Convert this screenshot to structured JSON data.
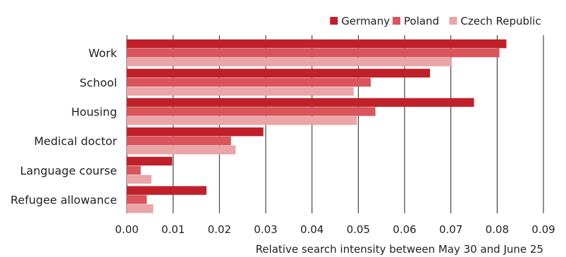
{
  "chart_data": {
    "type": "bar",
    "orientation": "horizontal",
    "categories": [
      "Work",
      "School",
      "Housing",
      "Medical doctor",
      "Language course",
      "Refugee allowance"
    ],
    "series": [
      {
        "name": "Germany",
        "color": "#c0202a",
        "values": [
          0.082,
          0.0655,
          0.075,
          0.0295,
          0.0098,
          0.0172
        ]
      },
      {
        "name": "Poland",
        "color": "#d9545b",
        "values": [
          0.0805,
          0.0527,
          0.0537,
          0.0225,
          0.003,
          0.0043
        ]
      },
      {
        "name": "Czech Republic",
        "color": "#eaa5a7",
        "values": [
          0.0702,
          0.049,
          0.0497,
          0.0235,
          0.0053,
          0.0057
        ]
      }
    ],
    "xlim": [
      0,
      0.09
    ],
    "xticks": [
      "0.00",
      "0.01",
      "0.02",
      "0.03",
      "0.04",
      "0.05",
      "0.06",
      "0.07",
      "0.08",
      "0.09"
    ],
    "xlabel": "Relative search intensity between May 30 and June 25",
    "grid": "vertical",
    "legend": "top-right"
  }
}
